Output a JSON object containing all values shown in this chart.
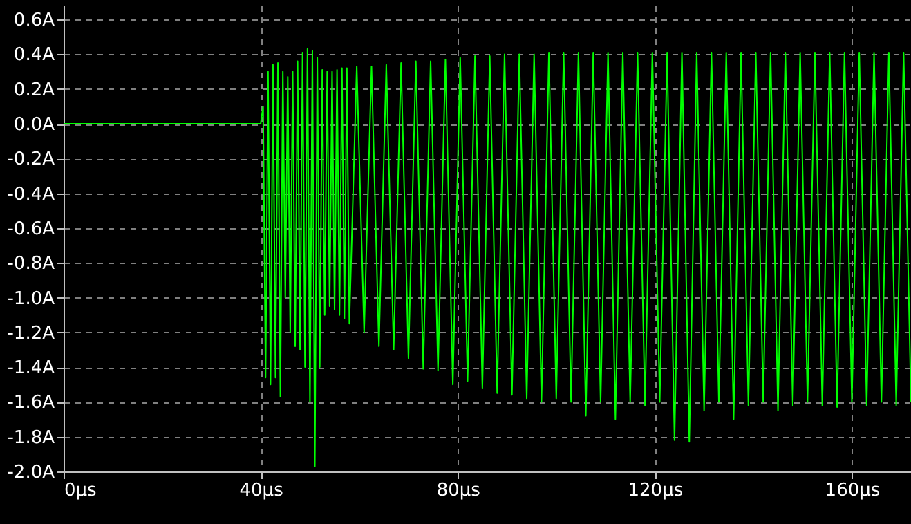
{
  "chart_data": {
    "type": "line",
    "grid": true,
    "marker": "none",
    "line_style": "solid",
    "xlim": [
      0,
      172
    ],
    "ylim": [
      -2.0,
      0.68
    ],
    "xticks": [
      {
        "value": 0,
        "label": "0µs"
      },
      {
        "value": 40,
        "label": "40µs"
      },
      {
        "value": 80,
        "label": "80µs"
      },
      {
        "value": 120,
        "label": "120µs"
      },
      {
        "value": 160,
        "label": "160µs"
      }
    ],
    "yticks": [
      {
        "value": 0.6,
        "label": "0.6A"
      },
      {
        "value": 0.4,
        "label": "0.4A"
      },
      {
        "value": 0.2,
        "label": "0.2A"
      },
      {
        "value": 0.0,
        "label": "0.0A"
      },
      {
        "value": -0.2,
        "label": "-0.2A"
      },
      {
        "value": -0.4,
        "label": "-0.4A"
      },
      {
        "value": -0.6,
        "label": "-0.6A"
      },
      {
        "value": -0.8,
        "label": "-0.8A"
      },
      {
        "value": -1.0,
        "label": "-1.0A"
      },
      {
        "value": -1.2,
        "label": "-1.2A"
      },
      {
        "value": -1.4,
        "label": "-1.4A"
      },
      {
        "value": -1.6,
        "label": "-1.6A"
      },
      {
        "value": -1.8,
        "label": "-1.8A"
      },
      {
        "value": -2.0,
        "label": "-2.0A"
      }
    ],
    "series": [
      {
        "color": "#00ff00",
        "x": [
          0,
          40,
          40.5,
          41,
          41.5,
          42,
          42.5,
          43,
          43.5,
          44,
          44.5,
          45,
          45.5,
          46,
          46.5,
          47,
          47.5,
          48,
          48.5,
          49,
          49.5,
          50,
          50.5,
          51,
          51.5,
          52,
          52.5,
          53,
          53.5,
          54,
          54.5,
          55,
          55.5,
          56,
          56.5,
          57,
          57.5,
          58,
          59.5,
          61,
          62.5,
          64,
          65.5,
          67,
          68.5,
          70,
          71.5,
          73,
          74.5,
          76,
          77.5,
          79,
          80.5,
          82,
          83.5,
          85,
          86.5,
          88,
          89.5,
          91,
          92.5,
          94,
          95.5,
          97,
          98.5,
          100,
          101.5,
          103,
          104.5,
          106,
          107.5,
          109,
          110.5,
          112,
          113.5,
          115,
          116.5,
          118,
          119.5,
          121,
          122.5,
          124,
          125.5,
          127,
          128.5,
          130,
          131.5,
          133,
          134.5,
          136,
          137.5,
          139,
          140.5,
          142,
          143.5,
          145,
          146.5,
          148,
          149.5,
          151,
          152.5,
          154,
          155.5,
          157,
          158.5,
          160,
          161.5,
          163,
          164.5,
          166,
          167.5,
          169,
          170.5,
          172
        ],
        "values": [
          0,
          0,
          0.1,
          -1.46,
          0.3,
          -1.5,
          0.34,
          -1.46,
          0.35,
          -1.57,
          0.3,
          -1.0,
          0.27,
          -1.2,
          0.3,
          -1.28,
          0.36,
          -1.3,
          0.41,
          -1.4,
          0.43,
          -1.6,
          0.42,
          -1.97,
          0.38,
          -1.4,
          0.31,
          -1.1,
          0.3,
          -1.05,
          0.3,
          -1.07,
          0.31,
          -1.1,
          0.32,
          -1.12,
          0.32,
          -1.15,
          0.33,
          -1.2,
          0.33,
          -1.28,
          0.34,
          -1.3,
          0.35,
          -1.35,
          0.36,
          -1.41,
          0.36,
          -1.42,
          0.37,
          -1.5,
          0.38,
          -1.48,
          0.39,
          -1.52,
          0.39,
          -1.55,
          0.4,
          -1.56,
          0.4,
          -1.58,
          0.4,
          -1.6,
          0.41,
          -1.58,
          0.41,
          -1.6,
          0.41,
          -1.68,
          0.41,
          -1.6,
          0.41,
          -1.7,
          0.41,
          -1.6,
          0.41,
          -1.62,
          0.41,
          -1.6,
          0.41,
          -1.82,
          0.41,
          -1.83,
          0.41,
          -1.65,
          0.41,
          -1.6,
          0.41,
          -1.7,
          0.41,
          -1.62,
          0.41,
          -1.6,
          0.41,
          -1.65,
          0.41,
          -1.62,
          0.41,
          -1.6,
          0.41,
          -1.62,
          0.41,
          -1.63,
          0.41,
          -1.6,
          0.41,
          -1.62,
          0.41,
          -1.6,
          0.41,
          -1.62,
          0.41,
          -1.6
        ]
      }
    ]
  }
}
